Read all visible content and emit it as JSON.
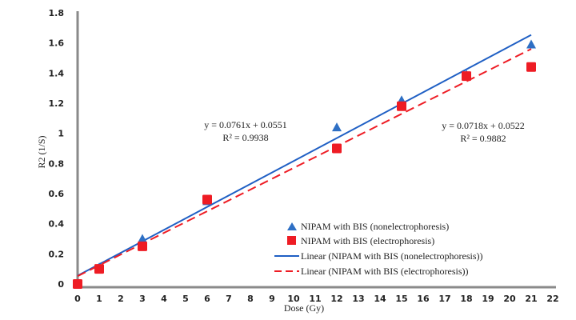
{
  "chart_data": {
    "type": "scatter",
    "title": "",
    "xlabel": "Dose (Gy)",
    "ylabel": "R2 (1/S)",
    "xlim": [
      0,
      22
    ],
    "ylim": [
      0,
      1.8
    ],
    "xticks": [
      "0",
      "1",
      "2",
      "3",
      "4",
      "5",
      "6",
      "7",
      "8",
      "9",
      "10",
      "11",
      "12",
      "13",
      "14",
      "15",
      "16",
      "17",
      "18",
      "19",
      "20",
      "21",
      "22"
    ],
    "yticks": [
      "0",
      "0.2",
      "0.4",
      "0.6",
      "0.8",
      "1",
      "1.2",
      "1.4",
      "1.6",
      "1.8"
    ],
    "grid": false,
    "legend_position": "bottom-right",
    "series": [
      {
        "name": "NIPAM with BIS (nonelectrophoresis)",
        "marker": "triangle",
        "color": "#2e6fc4",
        "x": [
          0,
          1,
          3,
          6,
          12,
          15,
          18,
          21
        ],
        "y": [
          0,
          0.11,
          0.3,
          0.55,
          1.04,
          1.22,
          1.39,
          1.59
        ]
      },
      {
        "name": "NIPAM with BIS (electrophoresis)",
        "marker": "square",
        "color": "#ee1c24",
        "x": [
          0,
          1,
          3,
          6,
          12,
          15,
          18,
          21
        ],
        "y": [
          0,
          0.1,
          0.25,
          0.56,
          0.9,
          1.18,
          1.38,
          1.44
        ]
      }
    ],
    "trendlines": [
      {
        "name": "Linear (NIPAM with BIS (nonelectrophoresis))",
        "slope": 0.0761,
        "intercept": 0.0551,
        "style": "solid",
        "color": "#1f5fc4",
        "equation": "y = 0.0761x + 0.0551",
        "r2": "R² = 0.9938"
      },
      {
        "name": "Linear (NIPAM with BIS (electrophoresis))",
        "slope": 0.0718,
        "intercept": 0.0522,
        "style": "dashed",
        "color": "#ee1c24",
        "equation": "y = 0.0718x + 0.0522",
        "r2": "R² = 0.9882"
      }
    ]
  }
}
